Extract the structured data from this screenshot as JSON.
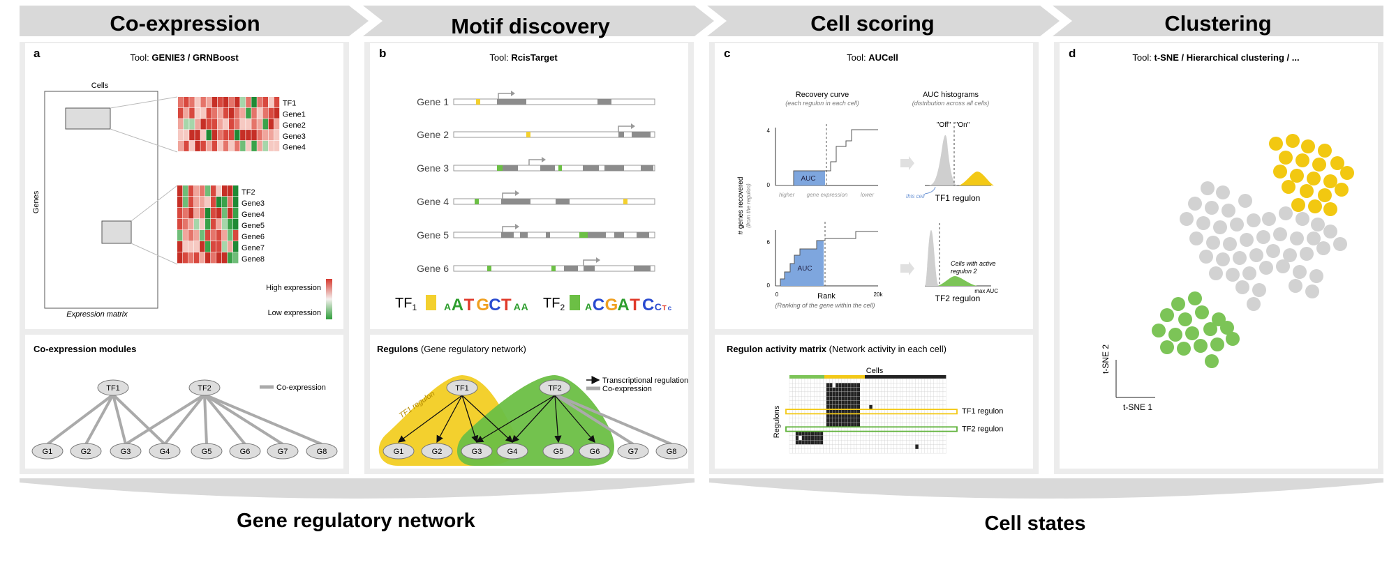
{
  "stages": [
    {
      "title": "Co-expression"
    },
    {
      "title": "Motif discovery"
    },
    {
      "title": "Cell scoring"
    },
    {
      "title": "Clustering"
    }
  ],
  "panel_a": {
    "letter": "a",
    "tool_prefix": "Tool:",
    "tool_name": "GENIE3 / GRNBoost",
    "cells_label": "Cells",
    "genes_label": "Genes",
    "matrix_label": "Expression matrix",
    "heatmap1_rows": [
      "TF1",
      "Gene1",
      "Gene2",
      "Gene3",
      "Gene4"
    ],
    "heatmap2_rows": [
      "TF2",
      "Gene3",
      "Gene4",
      "Gene5",
      "Gene6",
      "Gene7",
      "Gene8"
    ],
    "high_label": "High expression",
    "low_label": "Low expression",
    "modules_title": "Co-expression modules",
    "legend_coexp": "Co-expression",
    "tf_nodes": [
      "TF1",
      "TF2"
    ],
    "gene_nodes": [
      "G1",
      "G2",
      "G3",
      "G4",
      "G5",
      "G6",
      "G7",
      "G8"
    ]
  },
  "panel_b": {
    "letter": "b",
    "tool_prefix": "Tool:",
    "tool_name": "RcisTarget",
    "genes": [
      "Gene 1",
      "Gene 2",
      "Gene 3",
      "Gene 4",
      "Gene 5",
      "Gene 6"
    ],
    "tf1_label": "TF",
    "tf1_sub": "1",
    "tf2_label": "TF",
    "tf2_sub": "2",
    "motif1": [
      {
        "ch": "A",
        "c": "#2e9e2e",
        "s": "sm"
      },
      {
        "ch": "A",
        "c": "#2e9e2e",
        "s": "lg"
      },
      {
        "ch": "T",
        "c": "#e03a2a",
        "s": "lg"
      },
      {
        "ch": "G",
        "c": "#f0a020",
        "s": "lg"
      },
      {
        "ch": "C",
        "c": "#2a4bd0",
        "s": "lg"
      },
      {
        "ch": "T",
        "c": "#e03a2a",
        "s": "lg"
      },
      {
        "ch": "A",
        "c": "#2e9e2e",
        "s": "sm"
      },
      {
        "ch": "A",
        "c": "#2e9e2e",
        "s": "sm"
      }
    ],
    "motif2": [
      {
        "ch": "A",
        "c": "#2e9e2e",
        "s": "sm"
      },
      {
        "ch": "C",
        "c": "#2a4bd0",
        "s": "lg"
      },
      {
        "ch": "G",
        "c": "#f0a020",
        "s": "lg"
      },
      {
        "ch": "A",
        "c": "#2e9e2e",
        "s": "lg"
      },
      {
        "ch": "T",
        "c": "#e03a2a",
        "s": "lg"
      },
      {
        "ch": "C",
        "c": "#2a4bd0",
        "s": "lg"
      },
      {
        "ch": "C",
        "c": "#2a4bd0",
        "s": "sm"
      },
      {
        "ch": "T",
        "c": "#e03a2a",
        "s": "xs"
      },
      {
        "ch": "c",
        "c": "#2a4bd0",
        "s": "xs"
      }
    ],
    "regulons_title": "Regulons",
    "regulons_sub": "(Gene regulatory network)",
    "legend_reg": "Transcriptional regulation",
    "legend_coexp": "Co-expression",
    "tf1_regulon_label": "TF1 regulon"
  },
  "panel_c": {
    "letter": "c",
    "tool_prefix": "Tool:",
    "tool_name": "AUCell",
    "recovery_title": "Recovery curve",
    "recovery_sub": "(each regulon in each cell)",
    "hist_title": "AUC histograms",
    "hist_sub": "(distribution across all cells)",
    "ylabel": "# genes recovered",
    "ylabel_sub": "(from the regulon)",
    "y_ticks_top": [
      "4",
      "0"
    ],
    "y_ticks_bot": [
      "6",
      "0"
    ],
    "auc_label": "AUC",
    "higher": "higher",
    "gene_expression": "gene expression",
    "lower": "lower",
    "rank_label": "Rank",
    "rank_sub": "(Ranking of the gene within the cell)",
    "x_ticks_bot": [
      "0",
      "20k"
    ],
    "off_label": "\"Off\"",
    "on_label": "\"On\"",
    "this_cell": "this cell",
    "tf1_regulon": "TF1 regulon",
    "tf2_regulon": "TF2 regulon",
    "active_label_1": "Cells with active",
    "active_label_2": "regulon 2",
    "max_auc": "max AUC",
    "matrix_title": "Regulon activity matrix",
    "matrix_sub": "(Network activity in each cell)",
    "cells_label": "Cells",
    "regulons_label": "Regulons",
    "row_tf1": "TF1 regulon",
    "row_tf2": "TF2 regulon"
  },
  "panel_d": {
    "letter": "d",
    "tool_prefix": "Tool:",
    "tool_name": "t-SNE / Hierarchical clustering / ...",
    "axis_x": "t-SNE 1",
    "axis_y": "t-SNE 2",
    "colors": {
      "yellow": "#f2c811",
      "gray": "#d2d2d2",
      "green": "#7cc457"
    }
  },
  "bottom": {
    "grn": "Gene regulatory network",
    "states": "Cell states"
  },
  "colors": {
    "banner": "#d9d9d9",
    "panel_bg": "#ececec",
    "red": "#d63a30",
    "green": "#3a9e3a",
    "yellow_reg": "#f3d02e",
    "green_reg": "#6cbf45"
  }
}
